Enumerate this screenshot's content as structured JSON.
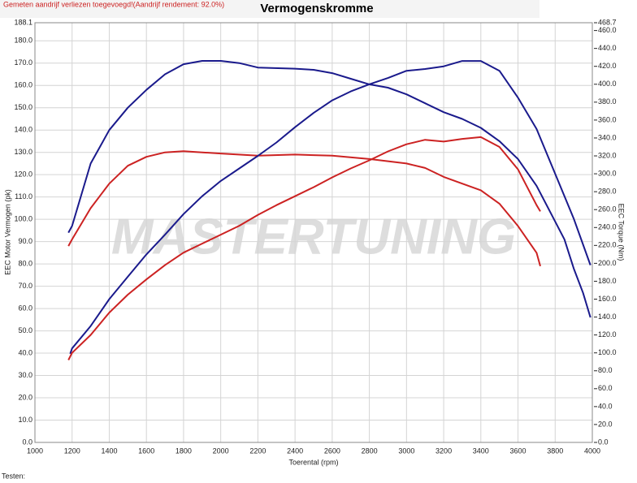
{
  "chart_data": {
    "type": "line",
    "title": "Vermogenskromme",
    "subtitle": "Gemeten aandrijf verliezen toegevoegd!(Aandrijf rendement: 92.0%)",
    "xlabel": "Toerental (rpm)",
    "ylabel": "EEC Motor Vermogen (pk)",
    "y2label": "EEC Torque (Nm)",
    "footer": "Testen:",
    "watermark": "MASTERTUNING",
    "grid": true,
    "xlim": [
      1000,
      4000
    ],
    "xticks": [
      1000,
      1200,
      1400,
      1600,
      1800,
      2000,
      2200,
      2400,
      2600,
      2800,
      3000,
      3200,
      3400,
      3600,
      3800,
      4000
    ],
    "ylim": [
      0,
      188.1
    ],
    "yticks": [
      {
        "value": 0,
        "label": "0.0"
      },
      {
        "value": 10,
        "label": "10.0"
      },
      {
        "value": 20,
        "label": "20.0"
      },
      {
        "value": 30,
        "label": "30.0"
      },
      {
        "value": 40,
        "label": "40.0"
      },
      {
        "value": 50,
        "label": "50.0"
      },
      {
        "value": 60,
        "label": "60.0"
      },
      {
        "value": 70,
        "label": "70.0"
      },
      {
        "value": 80,
        "label": "80.0"
      },
      {
        "value": 90,
        "label": "90.0"
      },
      {
        "value": 100,
        "label": "100.0"
      },
      {
        "value": 110,
        "label": "110.0"
      },
      {
        "value": 120,
        "label": "120.0"
      },
      {
        "value": 130,
        "label": "130.0"
      },
      {
        "value": 140,
        "label": "140.0"
      },
      {
        "value": 150,
        "label": "150.0"
      },
      {
        "value": 160,
        "label": "160.0"
      },
      {
        "value": 170,
        "label": "170.0"
      },
      {
        "value": 180,
        "label": "180.0"
      },
      188.1
    ],
    "y2lim": [
      0,
      468.7
    ],
    "y2ticks": [
      {
        "value": 0,
        "label": "0.0"
      },
      {
        "value": 20,
        "label": "20.0"
      },
      {
        "value": 40,
        "label": "40.0"
      },
      {
        "value": 60,
        "label": "60.0"
      },
      {
        "value": 80,
        "label": "80.0"
      },
      {
        "value": 100,
        "label": "100.0"
      },
      {
        "value": 120,
        "label": "120.0"
      },
      {
        "value": 140,
        "label": "140.0"
      },
      {
        "value": 160,
        "label": "160.0"
      },
      {
        "value": 180,
        "label": "180.0"
      },
      {
        "value": 200,
        "label": "200.0"
      },
      {
        "value": 220,
        "label": "220.0"
      },
      {
        "value": 240,
        "label": "240.0"
      },
      {
        "value": 260,
        "label": "260.0"
      },
      {
        "value": 280,
        "label": "280.0"
      },
      {
        "value": 300,
        "label": "300.0"
      },
      {
        "value": 320,
        "label": "320.0"
      },
      {
        "value": 340,
        "label": "340.0"
      },
      {
        "value": 360,
        "label": "360.0"
      },
      {
        "value": 380,
        "label": "380.0"
      },
      {
        "value": 400,
        "label": "400.0"
      },
      {
        "value": 420,
        "label": "420.0"
      },
      {
        "value": 440,
        "label": "440.0"
      },
      {
        "value": 460,
        "label": "460.0"
      },
      468.7
    ],
    "series": [
      {
        "color": "#1a1a8c",
        "x": [
          1180,
          1200,
          1300,
          1400,
          1500,
          1600,
          1700,
          1800,
          1900,
          2000,
          2100,
          2200,
          2400,
          2500,
          2600,
          2700,
          2800,
          2900,
          3000,
          3100,
          3200,
          3300,
          3400,
          3500,
          3600,
          3700,
          3800,
          3850,
          3900,
          3950,
          3990
        ],
        "values": [
          94,
          97,
          125,
          140,
          150,
          158,
          165,
          169.5,
          171,
          171,
          170,
          168,
          167.5,
          167,
          165.5,
          163,
          160.5,
          159,
          156,
          152,
          148,
          145,
          141,
          135,
          127,
          115,
          99,
          91,
          78,
          67,
          56
        ]
      },
      {
        "color": "#cc2222",
        "x": [
          1180,
          1200,
          1300,
          1400,
          1500,
          1600,
          1700,
          1800,
          1900,
          2000,
          2200,
          2400,
          2600,
          2800,
          3000,
          3100,
          3200,
          3300,
          3400,
          3500,
          3600,
          3700,
          3720
        ],
        "values": [
          88,
          91,
          105,
          116,
          124,
          128,
          130,
          130.5,
          130,
          129.5,
          128.5,
          129,
          128.5,
          127,
          125,
          123,
          119,
          116,
          113,
          107,
          97,
          85,
          79
        ]
      },
      {
        "color": "#1a1a8c",
        "axis": "y2",
        "x": [
          1190,
          1200,
          1300,
          1400,
          1500,
          1600,
          1700,
          1800,
          1900,
          2000,
          2100,
          2200,
          2300,
          2400,
          2500,
          2600,
          2700,
          2800,
          2900,
          3000,
          3100,
          3200,
          3300,
          3400,
          3500,
          3600,
          3700,
          3800,
          3900,
          3990
        ],
        "values": [
          99,
          105,
          130,
          160,
          185,
          210,
          232,
          255,
          275,
          292,
          306,
          320,
          335,
          352,
          368,
          382,
          392,
          400,
          407,
          415,
          417,
          420,
          426,
          426,
          415,
          385,
          350,
          300,
          250,
          198
        ]
      },
      {
        "color": "#cc2222",
        "axis": "y2",
        "x": [
          1180,
          1200,
          1300,
          1400,
          1500,
          1600,
          1700,
          1800,
          1900,
          2000,
          2100,
          2200,
          2300,
          2400,
          2500,
          2600,
          2700,
          2800,
          2900,
          3000,
          3100,
          3200,
          3300,
          3400,
          3500,
          3600,
          3700,
          3720
        ],
        "values": [
          92,
          100,
          120,
          145,
          165,
          182,
          198,
          212,
          222,
          232,
          242,
          254,
          265,
          275,
          285,
          296,
          306,
          315,
          325,
          333,
          338,
          336,
          339,
          341,
          330,
          305,
          265,
          258
        ]
      }
    ]
  }
}
